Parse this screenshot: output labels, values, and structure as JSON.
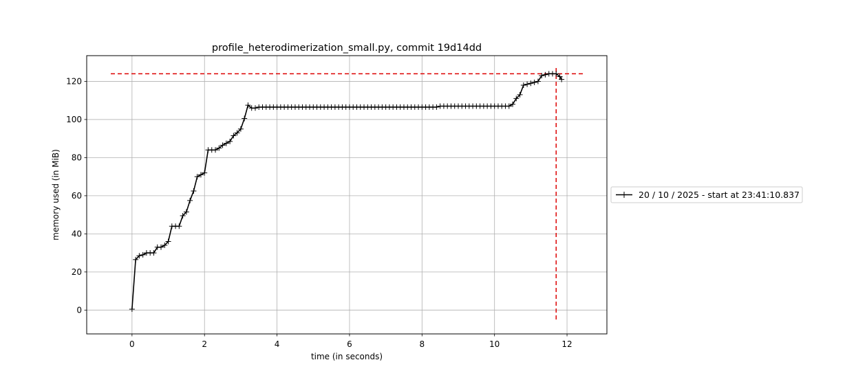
{
  "chart_data": {
    "type": "line",
    "title": "profile_heterodimerization_small.py, commit 19d14dd",
    "xlabel": "time (in seconds)",
    "ylabel": "memory used (in MiB)",
    "xlim": [
      -1.25,
      13.1
    ],
    "ylim": [
      -12.5,
      133.5
    ],
    "xticks": [
      0,
      2,
      4,
      6,
      8,
      10,
      12
    ],
    "yticks": [
      0,
      20,
      40,
      60,
      80,
      100,
      120
    ],
    "grid": true,
    "legend_position": "right",
    "series": [
      {
        "name": "20 / 10 / 2025 - start at 23:41:10.837",
        "color": "#000000",
        "marker": "+",
        "x": [
          0.0,
          0.1,
          0.2,
          0.3,
          0.4,
          0.5,
          0.6,
          0.7,
          0.8,
          0.9,
          1.0,
          1.1,
          1.2,
          1.3,
          1.4,
          1.5,
          1.6,
          1.7,
          1.8,
          1.9,
          2.0,
          2.1,
          2.2,
          2.3,
          2.4,
          2.5,
          2.6,
          2.7,
          2.8,
          2.9,
          3.0,
          3.1,
          3.2,
          3.3,
          3.4,
          3.5,
          3.6,
          3.7,
          3.8,
          3.9,
          4.0,
          4.1,
          4.2,
          4.3,
          4.4,
          4.5,
          4.6,
          4.7,
          4.8,
          4.9,
          5.0,
          5.1,
          5.2,
          5.3,
          5.4,
          5.5,
          5.6,
          5.7,
          5.8,
          5.9,
          6.0,
          6.1,
          6.2,
          6.3,
          6.4,
          6.5,
          6.6,
          6.7,
          6.8,
          6.9,
          7.0,
          7.1,
          7.2,
          7.3,
          7.4,
          7.5,
          7.6,
          7.7,
          7.8,
          7.9,
          8.0,
          8.1,
          8.2,
          8.3,
          8.4,
          8.5,
          8.6,
          8.7,
          8.8,
          8.9,
          9.0,
          9.1,
          9.2,
          9.3,
          9.4,
          9.5,
          9.6,
          9.7,
          9.8,
          9.9,
          10.0,
          10.1,
          10.2,
          10.3,
          10.4,
          10.5,
          10.6,
          10.7,
          10.8,
          10.9,
          11.0,
          11.1,
          11.2,
          11.3,
          11.4,
          11.5,
          11.6,
          11.7,
          11.8,
          11.85
        ],
        "y": [
          0.5,
          26.5,
          28.5,
          29.0,
          30.0,
          30.0,
          30.0,
          33.0,
          33.0,
          34.0,
          36.0,
          44.0,
          44.0,
          44.0,
          49.5,
          51.5,
          57.5,
          62.5,
          70.0,
          71.0,
          72.0,
          84.0,
          84.0,
          84.0,
          85.0,
          86.5,
          87.5,
          88.5,
          91.5,
          93.0,
          95.0,
          100.5,
          107.5,
          106.0,
          106.0,
          106.5,
          106.5,
          106.5,
          106.5,
          106.5,
          106.5,
          106.5,
          106.5,
          106.5,
          106.5,
          106.5,
          106.5,
          106.5,
          106.5,
          106.5,
          106.5,
          106.5,
          106.5,
          106.5,
          106.5,
          106.5,
          106.5,
          106.5,
          106.5,
          106.5,
          106.5,
          106.5,
          106.5,
          106.5,
          106.5,
          106.5,
          106.5,
          106.5,
          106.5,
          106.5,
          106.5,
          106.5,
          106.5,
          106.5,
          106.5,
          106.5,
          106.5,
          106.5,
          106.5,
          106.5,
          106.5,
          106.5,
          106.5,
          106.5,
          106.5,
          107.0,
          107.0,
          107.0,
          107.0,
          107.0,
          107.0,
          107.0,
          107.0,
          107.0,
          107.0,
          107.0,
          107.0,
          107.0,
          107.0,
          107.0,
          107.0,
          107.0,
          107.0,
          107.0,
          107.0,
          108.0,
          111.0,
          113.0,
          118.0,
          118.5,
          119.0,
          119.5,
          120.0,
          123.0,
          123.5,
          124.0,
          124.0,
          124.0,
          122.5,
          121.0
        ]
      }
    ],
    "peak_marker": {
      "x": 11.7,
      "y": 124.0,
      "color": "#dd0000",
      "style": "dashed"
    }
  }
}
